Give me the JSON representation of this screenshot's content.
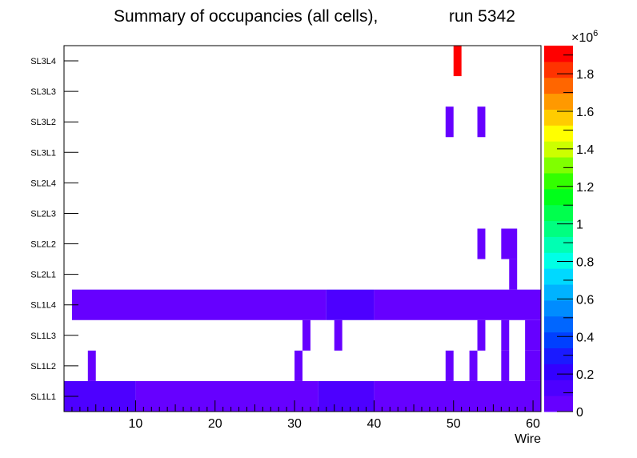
{
  "chart_data": {
    "type": "heatmap",
    "title": "Summary of occupancies (all cells),",
    "run_label": "run 5342",
    "xlabel": "Wire",
    "ylabel": "",
    "xlim": [
      1,
      61
    ],
    "x_ticks": [
      10,
      20,
      30,
      40,
      50,
      60
    ],
    "y_categories": [
      "SL1L1",
      "SL1L2",
      "SL1L3",
      "SL1L4",
      "SL2L1",
      "SL2L2",
      "SL2L3",
      "SL2L4",
      "SL3L1",
      "SL3L2",
      "SL3L3",
      "SL3L4"
    ],
    "z_exponent_label": "×10",
    "z_exponent_power": "6",
    "z_range": [
      0,
      1.95
    ],
    "z_ticks": [
      0,
      0.2,
      0.4,
      0.6,
      0.8,
      1,
      1.2,
      1.4,
      1.6,
      1.8
    ],
    "z_tick_labels": [
      "0",
      "0.2",
      "0.4",
      "0.6",
      "0.8",
      "1",
      "1.2",
      "1.4",
      "1.6",
      "1.8"
    ],
    "z_unit_note": "values in millions",
    "palette": [
      "#6600ff",
      "#4d00ff",
      "#3300ff",
      "#1a1aff",
      "#0040ff",
      "#0066ff",
      "#008cff",
      "#00b3ff",
      "#00d9ff",
      "#00ffe6",
      "#00ffb3",
      "#00ff80",
      "#00ff4d",
      "#00ff1a",
      "#33ff00",
      "#80ff00",
      "#ccff00",
      "#ffff00",
      "#ffcc00",
      "#ff9900",
      "#ff6600",
      "#ff3300",
      "#ff0000"
    ],
    "cells": [
      {
        "row": "SL1L1",
        "x_from": 1,
        "x_to": 10,
        "z": 0.16
      },
      {
        "row": "SL1L1",
        "x_from": 10,
        "x_to": 33,
        "z": 0.06
      },
      {
        "row": "SL1L1",
        "x_from": 33,
        "x_to": 40,
        "z": 0.16
      },
      {
        "row": "SL1L1",
        "x_from": 40,
        "x_to": 61,
        "z": 0.06
      },
      {
        "row": "SL1L2",
        "x_from": 4,
        "x_to": 5,
        "z": 0.05
      },
      {
        "row": "SL1L2",
        "x_from": 30,
        "x_to": 31,
        "z": 0.05
      },
      {
        "row": "SL1L2",
        "x_from": 49,
        "x_to": 50,
        "z": 0.05
      },
      {
        "row": "SL1L2",
        "x_from": 52,
        "x_to": 53,
        "z": 0.05
      },
      {
        "row": "SL1L2",
        "x_from": 56,
        "x_to": 57,
        "z": 0.05
      },
      {
        "row": "SL1L2",
        "x_from": 59,
        "x_to": 61,
        "z": 0.05
      },
      {
        "row": "SL1L3",
        "x_from": 31,
        "x_to": 32,
        "z": 0.05
      },
      {
        "row": "SL1L3",
        "x_from": 35,
        "x_to": 36,
        "z": 0.05
      },
      {
        "row": "SL1L3",
        "x_from": 53,
        "x_to": 54,
        "z": 0.05
      },
      {
        "row": "SL1L3",
        "x_from": 56,
        "x_to": 57,
        "z": 0.05
      },
      {
        "row": "SL1L3",
        "x_from": 59,
        "x_to": 61,
        "z": 0.05
      },
      {
        "row": "SL1L4",
        "x_from": 2,
        "x_to": 34,
        "z": 0.06
      },
      {
        "row": "SL1L4",
        "x_from": 34,
        "x_to": 40,
        "z": 0.16
      },
      {
        "row": "SL1L4",
        "x_from": 40,
        "x_to": 61,
        "z": 0.06
      },
      {
        "row": "SL2L1",
        "x_from": 57,
        "x_to": 58,
        "z": 0.05
      },
      {
        "row": "SL2L2",
        "x_from": 53,
        "x_to": 54,
        "z": 0.05
      },
      {
        "row": "SL2L2",
        "x_from": 56,
        "x_to": 58,
        "z": 0.05
      },
      {
        "row": "SL3L2",
        "x_from": 49,
        "x_to": 50,
        "z": 0.05
      },
      {
        "row": "SL3L2",
        "x_from": 53,
        "x_to": 54,
        "z": 0.05
      },
      {
        "row": "SL3L4",
        "x_from": 50,
        "x_to": 51,
        "z": 1.9
      }
    ]
  }
}
